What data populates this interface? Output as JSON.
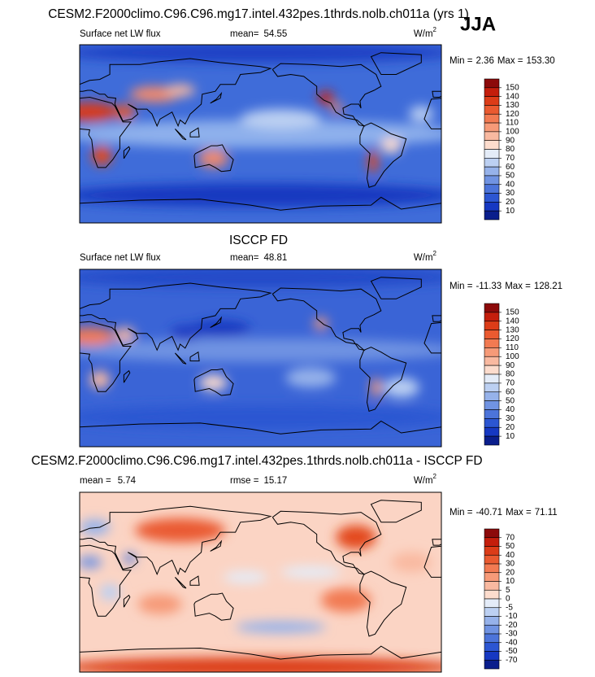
{
  "season": "JJA",
  "panels": [
    {
      "title": "CESM2.F2000climo.C96.C96.mg17.intel.432pes.1thrds.nolb.ch011a (yrs 1)",
      "left_text": "Surface net LW flux",
      "stat_label": "mean=",
      "stat_value": "54.55",
      "units": "W/m",
      "units_exponent": "2",
      "min_label": "Min =",
      "min": "2.36",
      "max_label": "Max =",
      "max": "153.30",
      "colorbar": {
        "levels": [
          150,
          140,
          130,
          120,
          110,
          100,
          90,
          80,
          70,
          60,
          50,
          40,
          30,
          20,
          10
        ],
        "colors": [
          "#8c0a0a",
          "#c41e0c",
          "#dc3c18",
          "#ea5a30",
          "#f27a52",
          "#f69a78",
          "#f9b9a0",
          "#fcdccd",
          "#e4ecf8",
          "#bcd0f2",
          "#96b2ea",
          "#7093e2",
          "#4c74da",
          "#2c56d2",
          "#1638c2",
          "#0a1e8c"
        ]
      }
    },
    {
      "title": "ISCCP FD",
      "left_text": "Surface net LW flux",
      "stat_label": "mean=",
      "stat_value": "48.81",
      "units": "W/m",
      "units_exponent": "2",
      "min_label": "Min =",
      "min": "-11.33",
      "max_label": "Max =",
      "max": "128.21",
      "colorbar": {
        "levels": [
          150,
          140,
          130,
          120,
          110,
          100,
          90,
          80,
          70,
          60,
          50,
          40,
          30,
          20,
          10
        ],
        "colors": [
          "#8c0a0a",
          "#c41e0c",
          "#dc3c18",
          "#ea5a30",
          "#f27a52",
          "#f69a78",
          "#f9b9a0",
          "#fcdccd",
          "#e4ecf8",
          "#bcd0f2",
          "#96b2ea",
          "#7093e2",
          "#4c74da",
          "#2c56d2",
          "#1638c2",
          "#0a1e8c"
        ]
      }
    },
    {
      "title": "CESM2.F2000climo.C96.C96.mg17.intel.432pes.1thrds.nolb.ch011a - ISCCP FD",
      "left_label": "mean =",
      "left_value": "5.74",
      "stat_label": "rmse =",
      "stat_value": "15.17",
      "units": "W/m",
      "units_exponent": "2",
      "min_label": "Min =",
      "min": "-40.71",
      "max_label": "Max =",
      "max": "71.11",
      "colorbar": {
        "levels": [
          70,
          50,
          40,
          30,
          20,
          10,
          5,
          0,
          -5,
          -10,
          -20,
          -30,
          -40,
          -50,
          -70
        ],
        "colors": [
          "#8c0a0a",
          "#c41e0c",
          "#dc3c18",
          "#ea5a30",
          "#f27a52",
          "#f69a78",
          "#f9b9a0",
          "#fcdccd",
          "#e4ecf8",
          "#bcd0f2",
          "#96b2ea",
          "#7093e2",
          "#4c74da",
          "#2c56d2",
          "#1638c2",
          "#0a1e8c"
        ]
      }
    }
  ]
}
